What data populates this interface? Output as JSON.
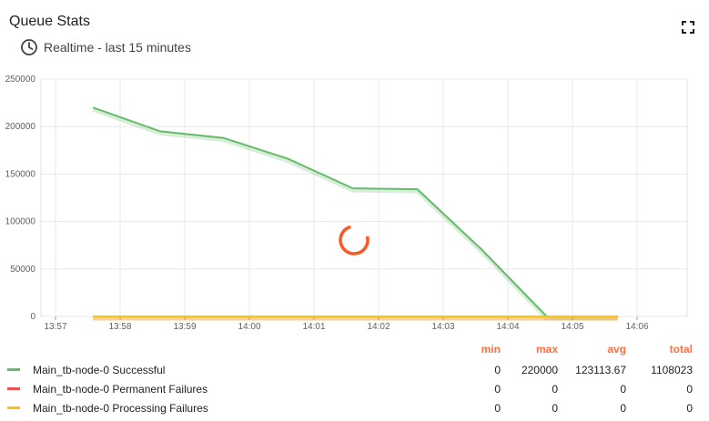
{
  "widget": {
    "title": "Queue Stats",
    "timewindow": "Realtime - last 15 minutes",
    "icons": {
      "clock": "clock-icon",
      "fullscreen": "fullscreen-icon"
    }
  },
  "chart_data": {
    "type": "line",
    "x": [
      "13:57",
      "13:58",
      "13:59",
      "14:00",
      "14:01",
      "14:02",
      "14:03",
      "14:04",
      "14:05",
      "14:06"
    ],
    "ylim": [
      0,
      250000
    ],
    "yticks": [
      "0",
      "50000",
      "100000",
      "150000",
      "200000",
      "250000"
    ],
    "grid": true,
    "series": [
      {
        "name": "Main_tb-node-0 Successful",
        "color": "#66bb6a",
        "points": [
          [
            0.58,
            220000
          ],
          [
            1.62,
            195000
          ],
          [
            2.6,
            188000
          ],
          [
            3.6,
            166000
          ],
          [
            4.6,
            135000
          ],
          [
            5.6,
            134000
          ],
          [
            6.6,
            70000
          ],
          [
            7.6,
            0
          ],
          [
            8.7,
            0
          ]
        ]
      },
      {
        "name": "Main_tb-node-0 Permanent Failures",
        "color": "#ef5350",
        "points": [
          [
            0.58,
            0
          ],
          [
            8.7,
            0
          ]
        ]
      },
      {
        "name": "Main_tb-node-0 Processing Failures",
        "color": "#ffc107",
        "points": [
          [
            0.58,
            0
          ],
          [
            8.7,
            0
          ]
        ]
      }
    ]
  },
  "legend": {
    "headers": {
      "min": "min",
      "max": "max",
      "avg": "avg",
      "total": "total"
    },
    "rows": [
      {
        "label": "Main_tb-node-0 Successful",
        "color": "#66bb6a",
        "min": "0",
        "max": "220000",
        "avg": "123113.67",
        "total": "1108023"
      },
      {
        "label": "Main_tb-node-0 Permanent Failures",
        "color": "#ef5350",
        "min": "0",
        "max": "0",
        "avg": "0",
        "total": "0"
      },
      {
        "label": "Main_tb-node-0 Processing Failures",
        "color": "#ffc107",
        "min": "0",
        "max": "0",
        "avg": "0",
        "total": "0"
      }
    ]
  },
  "loading_spinner_color": "#ff5722"
}
